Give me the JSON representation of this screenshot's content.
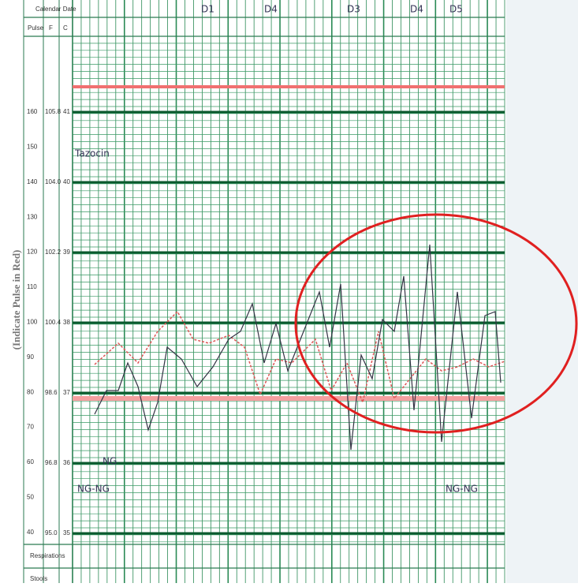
{
  "header": {
    "date": "Calendar Date",
    "pulse": "Pulse",
    "f": "F",
    "c": "C"
  },
  "days": [
    "D1",
    "D4",
    "D3",
    "D4",
    "D5"
  ],
  "side_label": "(Indicate Pulse in Red)",
  "pulse_scale": [
    "160",
    "150",
    "140",
    "130",
    "120",
    "110",
    "100",
    "90",
    "80",
    "70",
    "60",
    "50",
    "40"
  ],
  "fahrenheit_scale": [
    "105.8",
    "104.0",
    "102.2",
    "100.4",
    "98.6",
    "96.8",
    "95.0"
  ],
  "celsius_scale": [
    "41",
    "40",
    "39",
    "38",
    "37",
    "36",
    "35"
  ],
  "annotations": [
    "Tazocin",
    "NG",
    "NG-NG",
    "NG-NG"
  ],
  "footer": {
    "respirations": "Respirations",
    "stools": "Stools"
  }
}
